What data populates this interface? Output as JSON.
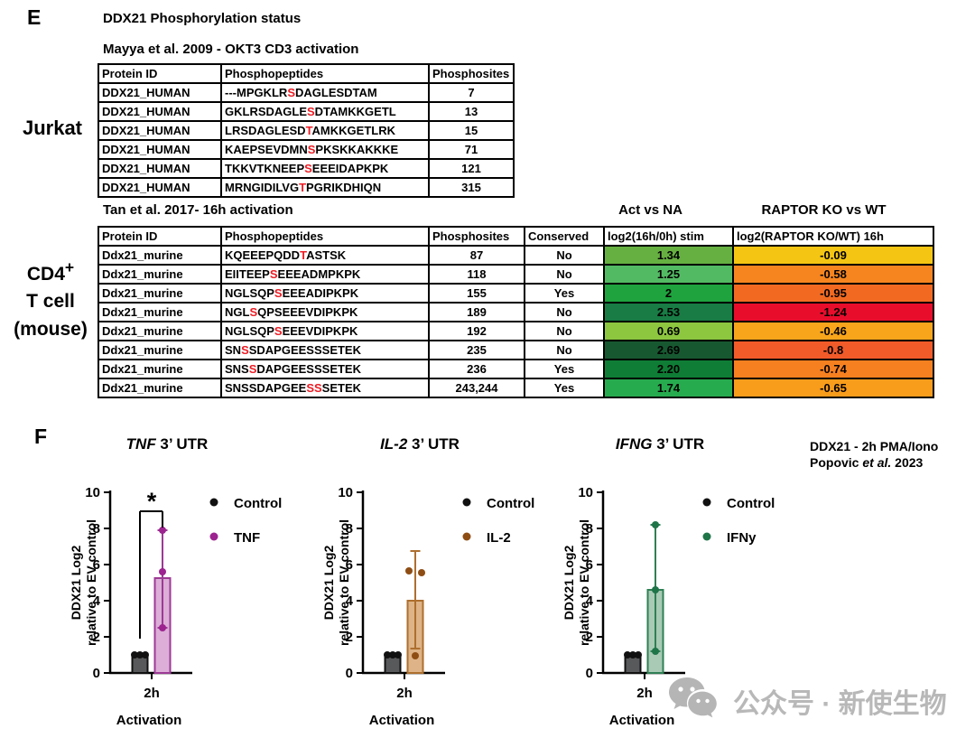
{
  "panel_e": {
    "label": "E",
    "title": "DDX21 Phosphorylation status",
    "row_label_jurkat": "Jurkat",
    "row_label_cd4": {
      "line1_base": "CD4",
      "line1_sup": "+",
      "line2": "T cell",
      "line3": "(mouse)"
    },
    "table1": {
      "caption": "Mayya et al. 2009 - OKT3 CD3 activation",
      "headers": [
        "Protein ID",
        "Phosphopeptides",
        "Phosphosites"
      ],
      "rows": [
        {
          "protein_id": "DDX21_HUMAN",
          "peptide": "---MPGKLRSDAGLESDTAM",
          "red_indices": [
            9
          ],
          "phosphosite": "7"
        },
        {
          "protein_id": "DDX21_HUMAN",
          "peptide": "GKLRSDAGLESDTAMKKGETL",
          "red_indices": [
            10
          ],
          "phosphosite": "13"
        },
        {
          "protein_id": "DDX21_HUMAN",
          "peptide": "LRSDAGLESDTAMKKGETLRK",
          "red_indices": [
            10
          ],
          "phosphosite": "15"
        },
        {
          "protein_id": "DDX21_HUMAN",
          "peptide": "KAEPSEVDMNSPKSKKAKKKE",
          "red_indices": [
            10
          ],
          "phosphosite": "71"
        },
        {
          "protein_id": "DDX21_HUMAN",
          "peptide": "TKKVTKNEEPSEEEIDAPKPK",
          "red_indices": [
            10
          ],
          "phosphosite": "121"
        },
        {
          "protein_id": "DDX21_HUMAN",
          "peptide": "MRNGIDILVGTPGRIKDHIQN",
          "red_indices": [
            10
          ],
          "phosphosite": "315"
        }
      ]
    },
    "table2": {
      "caption": "Tan et al. 2017- 16h activation",
      "group_header_act": "Act vs NA",
      "group_header_raptor": "RAPTOR KO vs WT",
      "headers": [
        "Protein ID",
        "Phosphopeptides",
        "Phosphosites",
        "Conserved",
        "log2(16h/0h) stim",
        "log2(RAPTOR KO/WT)  16h"
      ],
      "rows": [
        {
          "protein_id": "Ddx21_murine",
          "peptide": "KQEEEPQDDTASTSK",
          "red_indices": [
            9
          ],
          "phosphosite": "87",
          "conserved": "No",
          "act_value": "1.34",
          "act_color": "#66b041",
          "raptor_value": "-0.09",
          "raptor_color": "#f5c513"
        },
        {
          "protein_id": "Ddx21_murine",
          "peptide": "EIITEEPSEEEADMPKPK",
          "red_indices": [
            7
          ],
          "phosphosite": "118",
          "conserved": "No",
          "act_value": "1.25",
          "act_color": "#53ba64",
          "raptor_value": "-0.58",
          "raptor_color": "#f68520"
        },
        {
          "protein_id": "Ddx21_murine",
          "peptide": "NGLSQPSEEEADIPKPK",
          "red_indices": [
            6
          ],
          "phosphosite": "155",
          "conserved": "Yes",
          "act_value": "2",
          "act_color": "#1ea33e",
          "raptor_value": "-0.95",
          "raptor_color": "#f26a22"
        },
        {
          "protein_id": "Ddx21_murine",
          "peptide": "NGLSQPSEEEVDIPKPK",
          "red_indices": [
            3
          ],
          "phosphosite": "189",
          "conserved": "No",
          "act_value": "2.53",
          "act_color": "#187c44",
          "raptor_value": "-1.24",
          "raptor_color": "#e90d2c"
        },
        {
          "protein_id": "Ddx21_murine",
          "peptide": "NGLSQPSEEEVDIPKPK",
          "red_indices": [
            6
          ],
          "phosphosite": "192",
          "conserved": "No",
          "act_value": "0.69",
          "act_color": "#8dc63f",
          "raptor_value": "-0.46",
          "raptor_color": "#f9a51b"
        },
        {
          "protein_id": "Ddx21_murine",
          "peptide": "SNSSDAPGEESSSETEK",
          "red_indices": [
            2
          ],
          "phosphosite": "235",
          "conserved": "No",
          "act_value": "2.69",
          "act_color": "#175831",
          "raptor_value": "-0.8",
          "raptor_color": "#f15a29"
        },
        {
          "protein_id": "Ddx21_murine",
          "peptide": "SNSSDAPGEESSSETEK",
          "red_indices": [
            3
          ],
          "phosphosite": "236",
          "conserved": "Yes",
          "act_value": "2.20",
          "act_color": "#0f7d35",
          "raptor_value": "-0.74",
          "raptor_color": "#f68020"
        },
        {
          "protein_id": "Ddx21_murine",
          "peptide": "SNSSDAPGEESSSETEK",
          "red_indices": [
            10,
            11
          ],
          "phosphosite": "243,244",
          "conserved": "Yes",
          "act_value": "1.74",
          "act_color": "#27ab4f",
          "raptor_value": "-0.65",
          "raptor_color": "#f89c1b"
        }
      ]
    }
  },
  "panel_f": {
    "label": "F",
    "annotation": {
      "line1": "DDX21 - 2h PMA/Iono",
      "line2_pre": "Popovic ",
      "line2_italic": "et al.",
      "line2_post": " 2023"
    }
  },
  "watermark": {
    "icon": "wechat-logo",
    "label": "公众号 · 新使生物",
    "color": "#b8b8b8"
  },
  "chart_data": [
    {
      "type": "bar",
      "title": {
        "italic": "TNF",
        "rest": " 3’ UTR"
      },
      "ylabel": [
        "DDX21 Log2",
        "relative to EV control"
      ],
      "ylim": [
        0,
        10
      ],
      "yticks": [
        0,
        2,
        4,
        6,
        8,
        10
      ],
      "x_category": "2h",
      "xlabel": "Activation",
      "significance": "*",
      "legend_position": "right",
      "series": [
        {
          "name": "Control",
          "bar_value": 1.0,
          "points": [
            [
              -6,
              1.0
            ],
            [
              0,
              1.0
            ],
            [
              6,
              1.0
            ]
          ],
          "error": null,
          "fill": "#58595b",
          "border": "#111111",
          "dot_color": "#111111"
        },
        {
          "name": "TNF",
          "bar_value": 5.25,
          "points": [
            [
              0,
              2.5
            ],
            [
              0,
              5.6
            ],
            [
              0,
              7.9
            ]
          ],
          "error": [
            2.5,
            7.9
          ],
          "fill": "#dcaed8",
          "border": "#9c3a94",
          "dot_color": "#9c2390"
        }
      ]
    },
    {
      "type": "bar",
      "title": {
        "italic": "IL-2",
        "rest": " 3’ UTR"
      },
      "ylabel": [
        "DDX21 Log2",
        "relative to EV control"
      ],
      "ylim": [
        0,
        10
      ],
      "yticks": [
        0,
        2,
        4,
        6,
        8,
        10
      ],
      "x_category": "2h",
      "xlabel": "Activation",
      "significance": null,
      "legend_position": "right",
      "series": [
        {
          "name": "Control",
          "bar_value": 1.0,
          "points": [
            [
              -6,
              1.0
            ],
            [
              0,
              1.0
            ],
            [
              6,
              1.0
            ]
          ],
          "error": null,
          "fill": "#58595b",
          "border": "#111111",
          "dot_color": "#111111"
        },
        {
          "name": "IL-2",
          "bar_value": 4.0,
          "points": [
            [
              -7,
              5.65
            ],
            [
              7,
              5.55
            ],
            [
              0,
              0.95
            ]
          ],
          "error": [
            1.35,
            6.75
          ],
          "fill": "#deb387",
          "border": "#ad6f2e",
          "dot_color": "#8e4d13"
        }
      ]
    },
    {
      "type": "bar",
      "title": {
        "italic": "IFNG",
        "rest": " 3’ UTR"
      },
      "ylabel": [
        "DDX21 Log2",
        "relative to EV control"
      ],
      "ylim": [
        0,
        10
      ],
      "yticks": [
        0,
        2,
        4,
        6,
        8,
        10
      ],
      "x_category": "2h",
      "xlabel": "Activation",
      "significance": null,
      "legend_position": "right",
      "series": [
        {
          "name": "Control",
          "bar_value": 1.0,
          "points": [
            [
              -6,
              1.0
            ],
            [
              0,
              1.0
            ],
            [
              6,
              1.0
            ]
          ],
          "error": null,
          "fill": "#58595b",
          "border": "#111111",
          "dot_color": "#111111"
        },
        {
          "name": "IFNy",
          "bar_value": 4.6,
          "points": [
            [
              0,
              8.2
            ],
            [
              0,
              4.6
            ],
            [
              0,
              1.2
            ]
          ],
          "error": [
            1.2,
            8.2
          ],
          "fill": "#a9cab5",
          "border": "#2f8054",
          "dot_color": "#1f7448"
        }
      ]
    }
  ]
}
